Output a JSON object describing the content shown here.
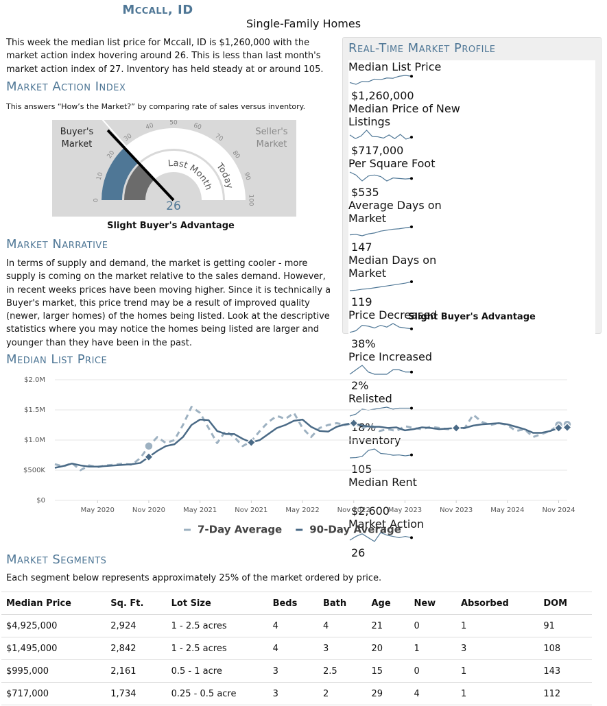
{
  "header": {
    "title": "Mccall, ID",
    "subtitle": "Single-Family Homes"
  },
  "intro": "This week the median list price for Mccall, ID is $1,260,000 with the market action index hovering around 26. This is less than last month's market action index of 27. Inventory has held steady at or around 105.",
  "market_action": {
    "heading": "Market Action Index",
    "description": "This answers “How’s the Market?” by comparing rate of sales versus inventory.",
    "verdict": "Slight Buyer's Advantage"
  },
  "gauge": {
    "ticks": [
      0,
      10,
      20,
      30,
      40,
      50,
      60,
      70,
      80,
      90,
      100
    ],
    "value": 26,
    "last_month": 27,
    "buyers_label": "Buyer's Market",
    "sellers_label": "Seller's Market",
    "last_month_label": "Last Month",
    "today_label": "Today"
  },
  "narrative": {
    "heading": "Market Narrative",
    "text": "In terms of supply and demand, the market is getting cooler - more supply is coming on the market relative to the sales demand. However, in recent weeks prices have been moving higher. Since it is technically a Buyer's market, this price trend may be a result of improved quality (newer, larger homes) of the homes being listed. Look at the descriptive statistics where you may notice the homes being listed are larger and younger than they have been in the past."
  },
  "profile": {
    "heading": "Real-Time Market Profile",
    "rows": [
      {
        "label": "Median List Price",
        "value": "$1,260,000",
        "trend": [
          1150000,
          1120000,
          1170000,
          1165000,
          1210000,
          1200000,
          1230000,
          1225000,
          1260000,
          1275000,
          1260000
        ]
      },
      {
        "label": "Median Price of New Listings",
        "value": "$717,000",
        "trend": [
          760000,
          690000,
          740000,
          850000,
          730000,
          725000,
          700000,
          760000,
          690000,
          770000,
          680000,
          717000
        ]
      },
      {
        "label": "Per Square Foot",
        "value": "$535",
        "trend": [
          600,
          570,
          510,
          560,
          570,
          555,
          510,
          540,
          535,
          530,
          535
        ]
      },
      {
        "label": "Average Days on Market",
        "value": "147",
        "trend": [
          130,
          131,
          128,
          132,
          134,
          138,
          140,
          142,
          143,
          145,
          147
        ]
      },
      {
        "label": "Median Days on Market",
        "value": "119",
        "trend": [
          100,
          101,
          103,
          104,
          106,
          108,
          110,
          112,
          114,
          116,
          119
        ]
      },
      {
        "label": "Price Decreased",
        "value": "38%",
        "trend": [
          34,
          36,
          42,
          41,
          39,
          42,
          40,
          44,
          40,
          39,
          38
        ]
      },
      {
        "label": "Price Increased",
        "value": "2%",
        "trend": [
          1,
          3,
          5,
          2,
          1,
          1,
          1,
          3,
          3,
          2,
          2
        ]
      },
      {
        "label": "Relisted",
        "value": "18%",
        "trend": [
          10,
          12,
          17,
          16,
          17,
          18,
          19,
          17,
          18,
          18,
          18
        ]
      },
      {
        "label": "Inventory",
        "value": "105",
        "trend": [
          95,
          96,
          100,
          120,
          125,
          110,
          108,
          104,
          105,
          102,
          105
        ]
      },
      {
        "label": "Median Rent",
        "value": "$2,600"
      },
      {
        "label": "Market Action",
        "value": "26",
        "trend": [
          24,
          27,
          29,
          26,
          23,
          30,
          28,
          27,
          26,
          27,
          26
        ]
      }
    ],
    "verdict": "Slight Buyer's Advantage"
  },
  "price_heading": "Median List Price",
  "chart_data": {
    "type": "line",
    "x": [
      "2019-12",
      "2020-01",
      "2020-02",
      "2020-03",
      "2020-04",
      "2020-05",
      "2020-06",
      "2020-07",
      "2020-08",
      "2020-09",
      "2020-10",
      "2020-11",
      "2020-12",
      "2021-01",
      "2021-02",
      "2021-03",
      "2021-04",
      "2021-05",
      "2021-06",
      "2021-07",
      "2021-08",
      "2021-09",
      "2021-10",
      "2021-11",
      "2021-12",
      "2022-01",
      "2022-02",
      "2022-03",
      "2022-04",
      "2022-05",
      "2022-06",
      "2022-07",
      "2022-08",
      "2022-09",
      "2022-10",
      "2022-11",
      "2022-12",
      "2023-01",
      "2023-02",
      "2023-03",
      "2023-04",
      "2023-05",
      "2023-06",
      "2023-07",
      "2023-08",
      "2023-09",
      "2023-10",
      "2023-11",
      "2023-12",
      "2024-01",
      "2024-02",
      "2024-03",
      "2024-04",
      "2024-05",
      "2024-06",
      "2024-07",
      "2024-08",
      "2024-09",
      "2024-10",
      "2024-11",
      "2024-12"
    ],
    "series": [
      {
        "name": "7-Day Average",
        "color": "#9db1c1",
        "values": [
          600000,
          560000,
          620000,
          500000,
          580000,
          550000,
          580000,
          590000,
          610000,
          590000,
          700000,
          900000,
          1050000,
          950000,
          1000000,
          1250000,
          1550000,
          1450000,
          1200000,
          950000,
          1150000,
          1050000,
          900000,
          980000,
          1150000,
          1300000,
          1400000,
          1350000,
          1450000,
          1200000,
          1050000,
          1200000,
          1250000,
          1280000,
          1250000,
          1280000,
          1200000,
          1250000,
          1150000,
          1180000,
          1150000,
          1230000,
          1200000,
          1180000,
          1220000,
          1200000,
          1180000,
          1190000,
          1200000,
          1420000,
          1300000,
          1250000,
          1280000,
          1250000,
          1150000,
          1180000,
          1050000,
          1100000,
          1150000,
          1250000,
          1260000
        ]
      },
      {
        "name": "90-Day Average",
        "color": "#4a6a86",
        "values": [
          540000,
          570000,
          610000,
          580000,
          560000,
          560000,
          570000,
          580000,
          590000,
          600000,
          620000,
          720000,
          820000,
          900000,
          930000,
          1050000,
          1250000,
          1340000,
          1330000,
          1150000,
          1100000,
          1100000,
          1020000,
          960000,
          1000000,
          1100000,
          1200000,
          1250000,
          1320000,
          1340000,
          1220000,
          1150000,
          1140000,
          1220000,
          1260000,
          1280000,
          1240000,
          1220000,
          1220000,
          1200000,
          1210000,
          1160000,
          1180000,
          1210000,
          1200000,
          1180000,
          1190000,
          1200000,
          1200000,
          1240000,
          1260000,
          1270000,
          1280000,
          1260000,
          1220000,
          1180000,
          1120000,
          1120000,
          1150000,
          1200000,
          1210000
        ]
      }
    ],
    "xlim": [
      "2019-12",
      "2024-12"
    ],
    "xticks": [
      {
        "value": "2020-05",
        "label": "May 2020"
      },
      {
        "value": "2020-11",
        "label": "Nov 2020"
      },
      {
        "value": "2021-05",
        "label": "May 2021"
      },
      {
        "value": "2021-11",
        "label": "Nov 2021"
      },
      {
        "value": "2022-05",
        "label": "May 2022"
      },
      {
        "value": "2022-11",
        "label": "Nov 2022"
      },
      {
        "value": "2023-05",
        "label": "May 2023"
      },
      {
        "value": "2023-11",
        "label": "Nov 2023"
      },
      {
        "value": "2024-05",
        "label": "May 2024"
      },
      {
        "value": "2024-11",
        "label": "Nov 2024"
      }
    ],
    "ylim": [
      0,
      2000000
    ],
    "yticks": [
      {
        "value": 0,
        "label": "$0"
      },
      {
        "value": 500000,
        "label": "$500K"
      },
      {
        "value": 1000000,
        "label": "$1.0M"
      },
      {
        "value": 1500000,
        "label": "$1.5M"
      },
      {
        "value": 2000000,
        "label": "$2.0M"
      }
    ],
    "grid": true,
    "legend": "bottom"
  },
  "segments": {
    "heading": "Market Segments",
    "description": "Each segment below represents approximately 25% of the market ordered by price.",
    "columns": [
      "Median Price",
      "Sq. Ft.",
      "Lot Size",
      "Beds",
      "Bath",
      "Age",
      "New",
      "Absorbed",
      "DOM"
    ],
    "rows": [
      [
        "$4,925,000",
        "2,924",
        "1 - 2.5 acres",
        "4",
        "4",
        "21",
        "0",
        "1",
        "91"
      ],
      [
        "$1,495,000",
        "2,842",
        "1 - 2.5 acres",
        "4",
        "3",
        "20",
        "1",
        "3",
        "108"
      ],
      [
        "$995,000",
        "2,161",
        "0.5 - 1 acre",
        "3",
        "2.5",
        "15",
        "0",
        "1",
        "143"
      ],
      [
        "$717,000",
        "1,734",
        "0.25 - 0.5 acre",
        "3",
        "2",
        "29",
        "4",
        "1",
        "112"
      ]
    ]
  }
}
